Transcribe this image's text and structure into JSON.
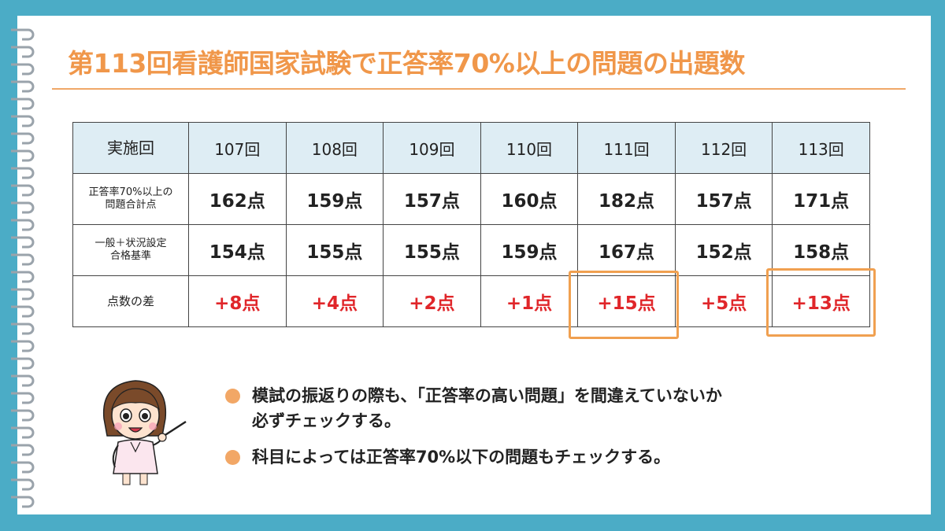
{
  "title": "第113回看護師国家試験で正答率70%以上の問題の出題数",
  "table": {
    "header": [
      "実施回",
      "107回",
      "108回",
      "109回",
      "110回",
      "111回",
      "112回",
      "113回"
    ],
    "rows": [
      {
        "label_lines": [
          "正答率70%以上の",
          "問題合計点"
        ],
        "cells": [
          "162点",
          "159点",
          "157点",
          "160点",
          "182点",
          "157点",
          "171点"
        ]
      },
      {
        "label_lines": [
          "一般＋状況設定",
          "合格基準"
        ],
        "cells": [
          "154点",
          "155点",
          "155点",
          "159点",
          "167点",
          "152点",
          "158点"
        ]
      },
      {
        "label_lines": [
          "点数の差"
        ],
        "cells": [
          "+8点",
          "+4点",
          "+2点",
          "+1点",
          "+15点",
          "+5点",
          "+13点"
        ]
      }
    ]
  },
  "highlighted_columns": [
    "111回",
    "113回"
  ],
  "bullets": [
    {
      "lines": [
        "模試の振返りの際も、「正答率の高い問題」を間違えていないか",
        "必ずチェックする。"
      ]
    },
    {
      "lines": [
        "科目によっては正答率70%以下の問題もチェックする。"
      ]
    }
  ],
  "colors": {
    "accent": "#f0974a",
    "frame": "#4bacc6",
    "header_fill": "#deedf4",
    "diff_red": "#e0262a"
  }
}
